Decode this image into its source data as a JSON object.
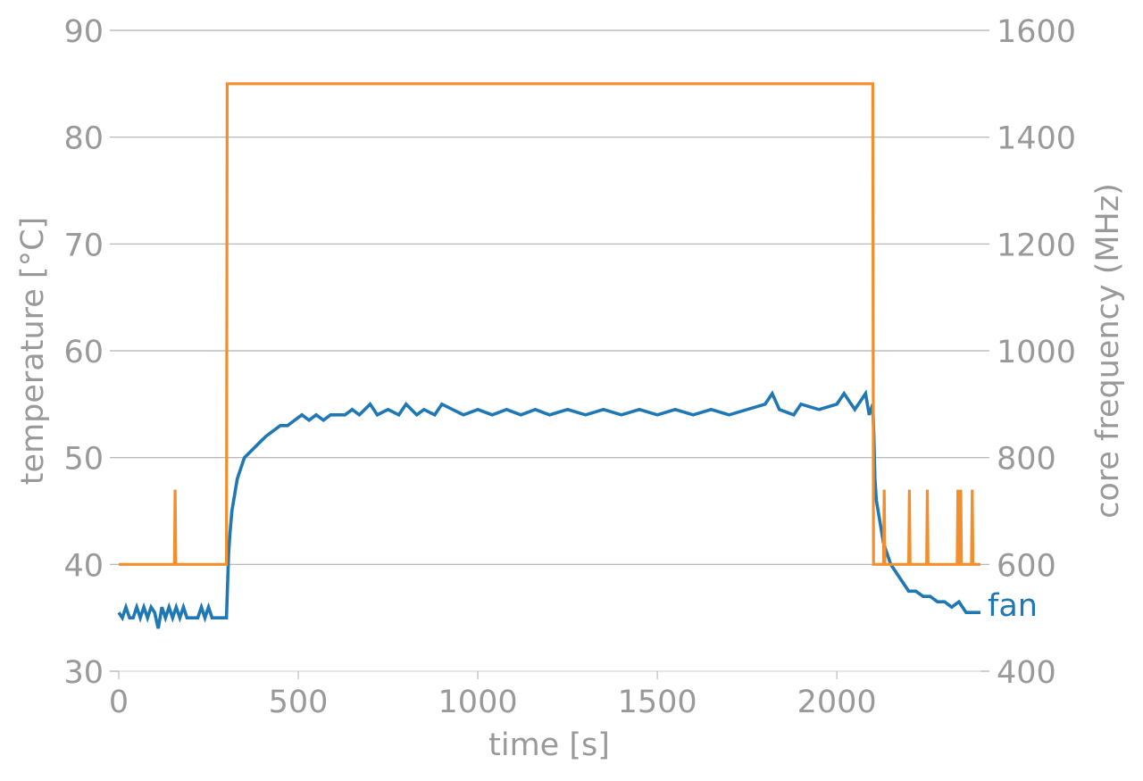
{
  "chart_data": {
    "type": "line",
    "title": "",
    "xlabel": "time [s]",
    "ylabel_left": "temperature [°C]",
    "ylabel_right": "core frequency (MHz)",
    "xlim": [
      0,
      2400
    ],
    "ylim_left": [
      30,
      90
    ],
    "ylim_right": [
      400,
      1600
    ],
    "x_ticks": [
      0,
      500,
      1000,
      1500,
      2000
    ],
    "y_ticks_left": [
      30,
      40,
      50,
      60,
      70,
      80,
      90
    ],
    "y_ticks_right": [
      400,
      600,
      800,
      1000,
      1200,
      1400,
      1600
    ],
    "grid": "horizontal",
    "colors": {
      "temperature": "#1f77b4",
      "frequency": "#f28e2b",
      "text": "#999999",
      "grid": "#b0b0b0"
    },
    "series": [
      {
        "name": "fan",
        "axis": "left",
        "points": [
          [
            0,
            35.5
          ],
          [
            10,
            35
          ],
          [
            20,
            36
          ],
          [
            30,
            35
          ],
          [
            40,
            35
          ],
          [
            50,
            36
          ],
          [
            60,
            35
          ],
          [
            70,
            36
          ],
          [
            80,
            35
          ],
          [
            90,
            36
          ],
          [
            100,
            35.5
          ],
          [
            110,
            34
          ],
          [
            120,
            36
          ],
          [
            130,
            35
          ],
          [
            140,
            36
          ],
          [
            150,
            35
          ],
          [
            160,
            36
          ],
          [
            170,
            35
          ],
          [
            180,
            36
          ],
          [
            190,
            35
          ],
          [
            200,
            35
          ],
          [
            220,
            35
          ],
          [
            230,
            36
          ],
          [
            240,
            35
          ],
          [
            250,
            36
          ],
          [
            260,
            35
          ],
          [
            270,
            35
          ],
          [
            280,
            35
          ],
          [
            290,
            35
          ],
          [
            300,
            35
          ],
          [
            303,
            38
          ],
          [
            306,
            41
          ],
          [
            310,
            43
          ],
          [
            315,
            45
          ],
          [
            320,
            46
          ],
          [
            325,
            47
          ],
          [
            330,
            48
          ],
          [
            340,
            49
          ],
          [
            350,
            50
          ],
          [
            365,
            50.5
          ],
          [
            380,
            51
          ],
          [
            395,
            51.5
          ],
          [
            410,
            52
          ],
          [
            430,
            52.5
          ],
          [
            450,
            53
          ],
          [
            470,
            53
          ],
          [
            490,
            53.5
          ],
          [
            510,
            54
          ],
          [
            530,
            53.5
          ],
          [
            550,
            54
          ],
          [
            570,
            53.5
          ],
          [
            590,
            54
          ],
          [
            610,
            54
          ],
          [
            630,
            54
          ],
          [
            650,
            54.5
          ],
          [
            670,
            54
          ],
          [
            700,
            55
          ],
          [
            720,
            54
          ],
          [
            750,
            54.5
          ],
          [
            780,
            54
          ],
          [
            800,
            55
          ],
          [
            830,
            54
          ],
          [
            850,
            54.5
          ],
          [
            880,
            54
          ],
          [
            900,
            55
          ],
          [
            930,
            54.5
          ],
          [
            960,
            54
          ],
          [
            1000,
            54.5
          ],
          [
            1040,
            54
          ],
          [
            1080,
            54.5
          ],
          [
            1120,
            54
          ],
          [
            1160,
            54.5
          ],
          [
            1200,
            54
          ],
          [
            1250,
            54.5
          ],
          [
            1300,
            54
          ],
          [
            1350,
            54.5
          ],
          [
            1400,
            54
          ],
          [
            1450,
            54.5
          ],
          [
            1500,
            54
          ],
          [
            1550,
            54.5
          ],
          [
            1600,
            54
          ],
          [
            1650,
            54.5
          ],
          [
            1700,
            54
          ],
          [
            1750,
            54.5
          ],
          [
            1800,
            55
          ],
          [
            1820,
            56
          ],
          [
            1840,
            54.5
          ],
          [
            1880,
            54
          ],
          [
            1900,
            55
          ],
          [
            1950,
            54.5
          ],
          [
            2000,
            55
          ],
          [
            2020,
            56
          ],
          [
            2050,
            54.5
          ],
          [
            2080,
            56
          ],
          [
            2090,
            54
          ],
          [
            2100,
            55
          ],
          [
            2103,
            52
          ],
          [
            2106,
            48
          ],
          [
            2110,
            46
          ],
          [
            2115,
            45
          ],
          [
            2120,
            44
          ],
          [
            2130,
            42
          ],
          [
            2140,
            41
          ],
          [
            2150,
            40
          ],
          [
            2160,
            39.5
          ],
          [
            2170,
            39
          ],
          [
            2180,
            38.5
          ],
          [
            2190,
            38
          ],
          [
            2200,
            37.5
          ],
          [
            2220,
            37.5
          ],
          [
            2240,
            37
          ],
          [
            2260,
            37
          ],
          [
            2280,
            36.5
          ],
          [
            2300,
            36.5
          ],
          [
            2320,
            36
          ],
          [
            2340,
            36.5
          ],
          [
            2360,
            35.5
          ],
          [
            2380,
            35.5
          ],
          [
            2400,
            35.5
          ]
        ]
      },
      {
        "name": "core frequency",
        "axis": "right",
        "points": [
          [
            0,
            600
          ],
          [
            155,
            600
          ],
          [
            157,
            740
          ],
          [
            159,
            600
          ],
          [
            300,
            600
          ],
          [
            302,
            1500
          ],
          [
            2100,
            1500
          ],
          [
            2102,
            600
          ],
          [
            2130,
            600
          ],
          [
            2132,
            740
          ],
          [
            2134,
            600
          ],
          [
            2200,
            600
          ],
          [
            2202,
            740
          ],
          [
            2204,
            600
          ],
          [
            2250,
            600
          ],
          [
            2252,
            740
          ],
          [
            2254,
            600
          ],
          [
            2335,
            600
          ],
          [
            2337,
            740
          ],
          [
            2339,
            600
          ],
          [
            2343,
            600
          ],
          [
            2345,
            740
          ],
          [
            2347,
            600
          ],
          [
            2375,
            600
          ],
          [
            2377,
            740
          ],
          [
            2379,
            600
          ],
          [
            2400,
            600
          ]
        ]
      }
    ]
  }
}
